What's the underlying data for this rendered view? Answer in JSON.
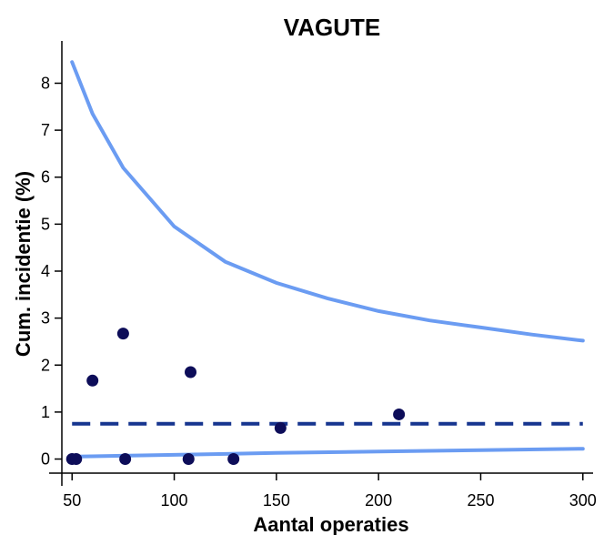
{
  "chart_data": {
    "type": "scatter",
    "title": "VAGUTE",
    "xlabel": "Aantal operaties",
    "ylabel": "Cum. incidentie (%)",
    "xlim": [
      45,
      305
    ],
    "ylim": [
      -0.3,
      8.9
    ],
    "xticks": [
      50,
      100,
      150,
      200,
      250,
      300
    ],
    "yticks": [
      0,
      1,
      2,
      3,
      4,
      5,
      6,
      7,
      8
    ],
    "grid": false,
    "legend": "none",
    "points": [
      {
        "x": 50,
        "y": 0
      },
      {
        "x": 52,
        "y": 0
      },
      {
        "x": 60,
        "y": 1.67
      },
      {
        "x": 75,
        "y": 2.67
      },
      {
        "x": 76,
        "y": 0
      },
      {
        "x": 107,
        "y": 0
      },
      {
        "x": 108,
        "y": 1.85
      },
      {
        "x": 129,
        "y": 0
      },
      {
        "x": 152,
        "y": 0.66
      },
      {
        "x": 210,
        "y": 0.95
      }
    ],
    "mean_line": {
      "y": 0.75
    },
    "upper_limit": {
      "x": [
        50,
        60,
        75,
        100,
        125,
        150,
        175,
        200,
        225,
        250,
        275,
        300
      ],
      "y": [
        8.45,
        7.35,
        6.2,
        4.95,
        4.2,
        3.75,
        3.42,
        3.15,
        2.95,
        2.8,
        2.65,
        2.52
      ]
    },
    "lower_limit": {
      "x": [
        50,
        100,
        150,
        200,
        250,
        300
      ],
      "y": [
        0.05,
        0.09,
        0.13,
        0.16,
        0.19,
        0.22
      ]
    },
    "colors": {
      "points": "#0d0d59",
      "mean_line": "#16358f",
      "limits": "#6b9cf2"
    }
  }
}
